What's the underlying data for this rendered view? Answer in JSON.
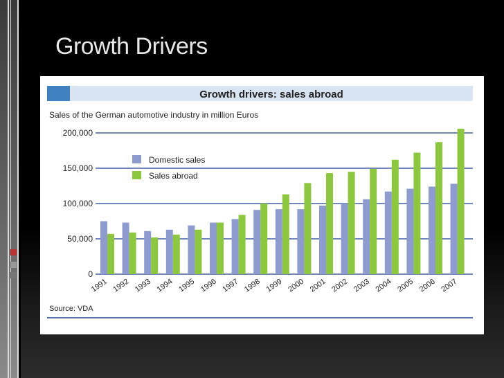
{
  "slide": {
    "title": "Growth Drivers"
  },
  "colors": {
    "domestic": "#8e9bcf",
    "abroad": "#8dc63f",
    "axis": "#1f3f8f",
    "title_band": "#d9e4f2",
    "title_block": "#3f82bf"
  },
  "chart_data": {
    "type": "bar",
    "title": "Growth drivers: sales abroad",
    "subtitle": "Sales of the German automotive industry in million Euros",
    "source": "Source: VDA",
    "categories": [
      "1991",
      "1992",
      "1993",
      "1994",
      "1995",
      "1996",
      "1997",
      "1998",
      "1999",
      "2000",
      "2001",
      "2002",
      "2003",
      "2004",
      "2005",
      "2006",
      "2007"
    ],
    "series": [
      {
        "name": "Domestic sales",
        "values": [
          75000,
          73000,
          61000,
          63000,
          69000,
          73000,
          78000,
          91000,
          92000,
          92000,
          97000,
          100000,
          106000,
          117000,
          121000,
          124000,
          128000
        ]
      },
      {
        "name": "Sales abroad",
        "values": [
          57000,
          59000,
          52000,
          56000,
          63000,
          73000,
          84000,
          100000,
          113000,
          129000,
          143000,
          145000,
          149000,
          162000,
          172000,
          187000,
          206000
        ]
      }
    ],
    "y_ticks": [
      "200,000",
      "150,000",
      "100,000",
      "50,000",
      "0"
    ],
    "y_tick_values": [
      200000,
      150000,
      100000,
      50000,
      0
    ],
    "ylim": [
      0,
      210000
    ],
    "xlabel": "",
    "ylabel": "",
    "legend_position": "top-left"
  }
}
